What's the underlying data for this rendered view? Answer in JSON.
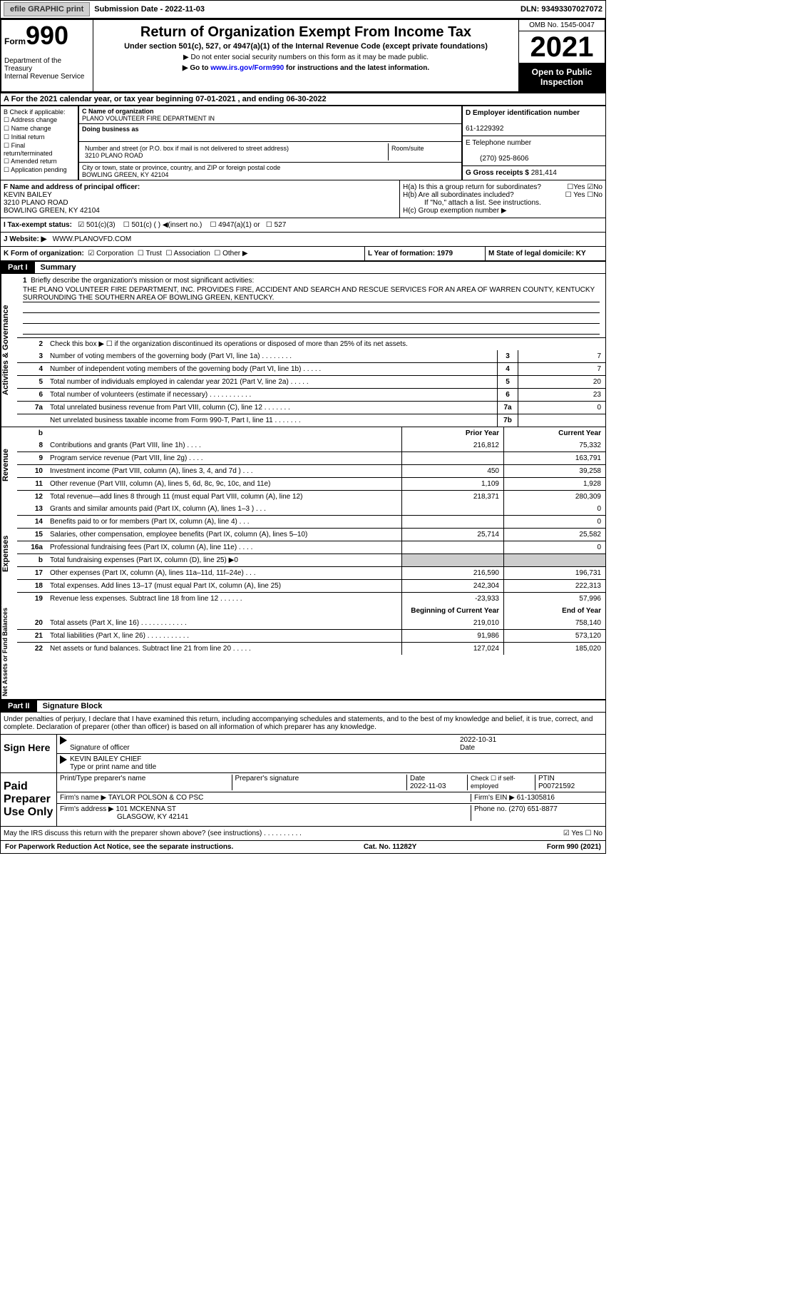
{
  "topbar": {
    "efile": "efile GRAPHIC print",
    "sub": "Submission Date - 2022-11-03",
    "dln": "DLN: 93493307027072"
  },
  "hdr": {
    "form": "Form",
    "n990": "990",
    "dept": "Department of the Treasury\nInternal Revenue Service",
    "title": "Return of Organization Exempt From Income Tax",
    "sub1": "Under section 501(c), 527, or 4947(a)(1) of the Internal Revenue Code (except private foundations)",
    "sub2": "▶ Do not enter social security numbers on this form as it may be made public.",
    "sub3": "▶ Go to www.irs.gov/Form990 for instructions and the latest information.",
    "link": "www.irs.gov/Form990",
    "omb": "OMB No. 1545-0047",
    "year": "2021",
    "open": "Open to Public Inspection"
  },
  "A": {
    "text": "A For the 2021 calendar year, or tax year beginning 07-01-2021   , and ending 06-30-2022"
  },
  "B": {
    "hdr": "B Check if applicable:",
    "items": [
      "☐ Address change",
      "☐ Name change",
      "☐ Initial return",
      "☐ Final return/terminated",
      "☐ Amended return",
      "☐ Application pending"
    ]
  },
  "C": {
    "nameL": "C Name of organization",
    "name": "PLANO VOLUNTEER FIRE DEPARTMENT IN",
    "dbaL": "Doing business as",
    "dba": "",
    "streetL": "Number and street (or P.O. box if mail is not delivered to street address)",
    "room": "Room/suite",
    "street": "3210 PLANO ROAD",
    "cityL": "City or town, state or province, country, and ZIP or foreign postal code",
    "city": "BOWLING GREEN, KY  42104"
  },
  "D": {
    "lab": "D Employer identification number",
    "val": "61-1229392"
  },
  "E": {
    "lab": "E Telephone number",
    "val": "(270) 925-8606"
  },
  "G": {
    "lab": "G Gross receipts $",
    "val": "281,414"
  },
  "F": {
    "lab": "F  Name and address of principal officer:",
    "name": "KEVIN BAILEY",
    "addr1": "3210 PLANO ROAD",
    "addr2": "BOWLING GREEN, KY  42104"
  },
  "H": {
    "a": "H(a)  Is this a group return for subordinates?",
    "ay": "☐Yes ☑No",
    "b": "H(b)  Are all subordinates included?",
    "by": "☐ Yes ☐No",
    "note": "If \"No,\" attach a list. See instructions.",
    "c": "H(c)  Group exemption number ▶",
    "cv": ""
  },
  "I": {
    "lab": "I    Tax-exempt status:",
    "c1": "☑ 501(c)(3)",
    "c2": "☐ 501(c) (  ) ◀(insert no.)",
    "c3": "☐ 4947(a)(1) or",
    "c4": "☐ 527"
  },
  "J": {
    "lab": "J   Website: ▶",
    "val": "WWW.PLANOVFD.COM"
  },
  "K": {
    "lab": "K Form of organization:",
    "c1": "☑ Corporation",
    "c2": "☐ Trust",
    "c3": "☐ Association",
    "c4": "☐ Other ▶"
  },
  "L": {
    "lab": "L Year of formation: 1979"
  },
  "M": {
    "lab": "M State of legal domicile: KY"
  },
  "part1": {
    "n": "Part I",
    "t": "Summary"
  },
  "mission": {
    "n": "1",
    "lab": "Briefly describe the organization's mission or most significant activities:",
    "text": "THE PLANO VOLUNTEER FIRE DEPARTMENT, INC. PROVIDES FIRE, ACCIDENT AND SEARCH AND RESCUE SERVICES FOR AN AREA OF WARREN COUNTY, KENTUCKY SURROUNDING THE SOUTHERN AREA OF BOWLING GREEN, KENTUCKY."
  },
  "gov": {
    "side": "Activities & Governance",
    "l2": "Check this box ▶ ☐ if the organization discontinued its operations or disposed of more than 25% of its net assets.",
    "rows": [
      {
        "n": "3",
        "t": "Number of voting members of the governing body (Part VI, line 1a)  .    .    .    .    .    .    .    .",
        "b": "3",
        "v": "7"
      },
      {
        "n": "4",
        "t": "Number of independent voting members of the governing body (Part VI, line 1b)  .    .    .    .    .",
        "b": "4",
        "v": "7"
      },
      {
        "n": "5",
        "t": "Total number of individuals employed in calendar year 2021 (Part V, line 2a)   .    .    .    .    .",
        "b": "5",
        "v": "20"
      },
      {
        "n": "6",
        "t": "Total number of volunteers (estimate if necessary)    .    .    .    .    .    .    .    .    .    .    .",
        "b": "6",
        "v": "23"
      },
      {
        "n": "7a",
        "t": "Total unrelated business revenue from Part VIII, column (C), line 12   .    .    .    .    .    .    .",
        "b": "7a",
        "v": "0"
      },
      {
        "n": "",
        "t": "Net unrelated business taxable income from Form 990-T, Part I, line 11  .    .    .    .    .    .    .",
        "b": "7b",
        "v": ""
      }
    ]
  },
  "revhdr": {
    "py": "Prior Year",
    "cy": "Current Year"
  },
  "rev": {
    "side": "Revenue",
    "rows": [
      {
        "n": "8",
        "t": "Contributions and grants (Part VIII, line 1h)   .    .    .    .",
        "py": "216,812",
        "cy": "75,332"
      },
      {
        "n": "9",
        "t": "Program service revenue (Part VIII, line 2g)   .    .    .    .",
        "py": "",
        "cy": "163,791"
      },
      {
        "n": "10",
        "t": "Investment income (Part VIII, column (A), lines 3, 4, and 7d )   .    .    .",
        "py": "450",
        "cy": "39,258"
      },
      {
        "n": "11",
        "t": "Other revenue (Part VIII, column (A), lines 5, 6d, 8c, 9c, 10c, and 11e)",
        "py": "1,109",
        "cy": "1,928"
      },
      {
        "n": "12",
        "t": "Total revenue—add lines 8 through 11 (must equal Part VIII, column (A), line 12)",
        "py": "218,371",
        "cy": "280,309"
      }
    ]
  },
  "exp": {
    "side": "Expenses",
    "rows": [
      {
        "n": "13",
        "t": "Grants and similar amounts paid (Part IX, column (A), lines 1–3 )   .    .    .",
        "py": "",
        "cy": "0"
      },
      {
        "n": "14",
        "t": "Benefits paid to or for members (Part IX, column (A), line 4)   .    .    .",
        "py": "",
        "cy": "0"
      },
      {
        "n": "15",
        "t": "Salaries, other compensation, employee benefits (Part IX, column (A), lines 5–10)",
        "py": "25,714",
        "cy": "25,582"
      },
      {
        "n": "16a",
        "t": "Professional fundraising fees (Part IX, column (A), line 11e)   .    .    .    .",
        "py": "",
        "cy": "0"
      },
      {
        "n": "b",
        "t": "Total fundraising expenses (Part IX, column (D), line 25) ▶0",
        "py": "GREY",
        "cy": "GREY"
      },
      {
        "n": "17",
        "t": "Other expenses (Part IX, column (A), lines 11a–11d, 11f–24e)   .    .    .",
        "py": "216,590",
        "cy": "196,731"
      },
      {
        "n": "18",
        "t": "Total expenses. Add lines 13–17 (must equal Part IX, column (A), line 25)",
        "py": "242,304",
        "cy": "222,313"
      },
      {
        "n": "19",
        "t": "Revenue less expenses. Subtract line 18 from line 12  .    .    .    .    .    .",
        "py": "-23,933",
        "cy": "57,996"
      }
    ]
  },
  "nethdr": {
    "py": "Beginning of Current Year",
    "cy": "End of Year"
  },
  "net": {
    "side": "Net Assets or Fund Balances",
    "rows": [
      {
        "n": "20",
        "t": "Total assets (Part X, line 16)  .    .    .    .    .    .    .    .    .    .    .    .",
        "py": "219,010",
        "cy": "758,140"
      },
      {
        "n": "21",
        "t": "Total liabilities (Part X, line 26)   .    .    .    .    .    .    .    .    .    .    .",
        "py": "91,986",
        "cy": "573,120"
      },
      {
        "n": "22",
        "t": "Net assets or fund balances. Subtract line 21 from line 20   .    .    .    .    .",
        "py": "127,024",
        "cy": "185,020"
      }
    ]
  },
  "part2": {
    "n": "Part II",
    "t": "Signature Block"
  },
  "pen": "Under penalties of perjury, I declare that I have examined this return, including accompanying schedules and statements, and to the best of my knowledge and belief, it is true, correct, and complete. Declaration of preparer (other than officer) is based on all information of which preparer has any knowledge.",
  "sign": {
    "here": "Sign Here",
    "sigL": "Signature of officer",
    "date": "2022-10-31",
    "name": "KEVIN BAILEY CHIEF",
    "nameL": "Type or print name and title"
  },
  "prep": {
    "lab": "Paid Preparer Use Only",
    "h1": "Print/Type preparer's name",
    "h2": "Preparer's signature",
    "h3": "Date",
    "h3v": "2022-11-03",
    "h4": "Check ☐ if self-employed",
    "h5": "PTIN",
    "h5v": "P00721592",
    "f1": "Firm's name     ▶",
    "f1v": "TAYLOR POLSON & CO PSC",
    "f2": "Firm's EIN ▶",
    "f2v": "61-1305816",
    "a1": "Firm's address ▶",
    "a1v": "101 MCKENNA ST",
    "a2": "GLASGOW, KY  42141",
    "ph": "Phone no.",
    "phv": "(270) 651-8877"
  },
  "may": {
    "t": "May the IRS discuss this return with the preparer shown above? (see instructions)   .    .    .    .    .    .    .    .    .    .",
    "yn": "☑ Yes  ☐ No"
  },
  "foot": {
    "l": "For Paperwork Reduction Act Notice, see the separate instructions.",
    "m": "Cat. No. 11282Y",
    "r": "Form 990 (2021)"
  }
}
